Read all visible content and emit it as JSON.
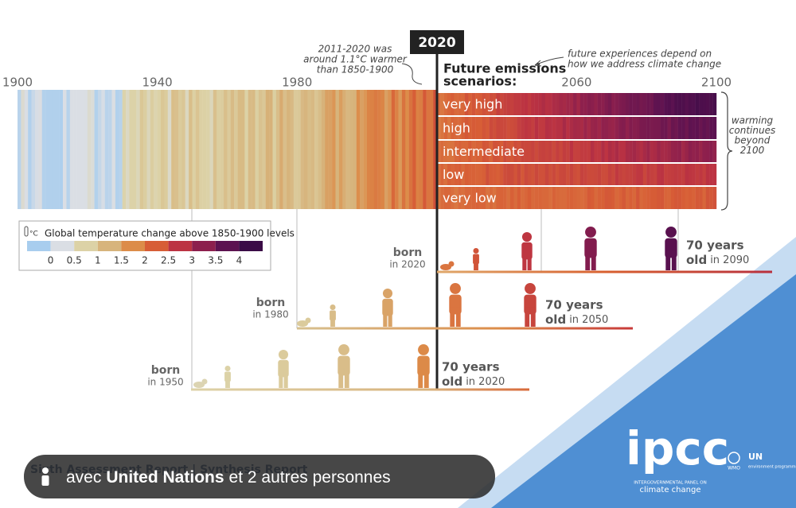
{
  "header": {
    "year_marker": "2020",
    "note_left": [
      "2011-2020 was",
      "around 1.1°C warmer",
      "than 1850-1900"
    ],
    "note_right": [
      "future experiences depend on",
      "how we address climate change"
    ],
    "scenarios_title": [
      "Future emissions",
      "scenarios:"
    ]
  },
  "axis_labels": [
    "1900",
    "1940",
    "1980",
    "2060",
    "2100"
  ],
  "scenarios": [
    "very high",
    "high",
    "intermediate",
    "low",
    "very low"
  ],
  "side_note": [
    "warming",
    "continues",
    "beyond",
    "2100"
  ],
  "legend": {
    "unit": "°C",
    "title": "Global temperature change above 1850-1900 levels",
    "ticks": [
      "0",
      "0.5",
      "1",
      "1.5",
      "2",
      "2.5",
      "3",
      "3.5",
      "4"
    ]
  },
  "generations": [
    {
      "born": "born",
      "year": "in 2020",
      "age": "70 years",
      "old": "old",
      "until": "in 2090"
    },
    {
      "born": "born",
      "year": "in 1980",
      "age": "70 years",
      "old": "old",
      "until": "in 2050"
    },
    {
      "born": "born",
      "year": "in 1950",
      "age": "70 years",
      "old": "old",
      "until": "in 2020"
    }
  ],
  "footer": {
    "report": "Sixth Assessment Report | Synthesis Report",
    "logo": "ipcc",
    "org": [
      "INTERGOVERNMENTAL PANEL ON",
      "climate change"
    ],
    "partners": [
      "WMO",
      "UN",
      "environment programme"
    ]
  },
  "overlay": {
    "prefix": "avec",
    "bold": "United Nations",
    "suffix": "et 2 autres personnes"
  }
}
